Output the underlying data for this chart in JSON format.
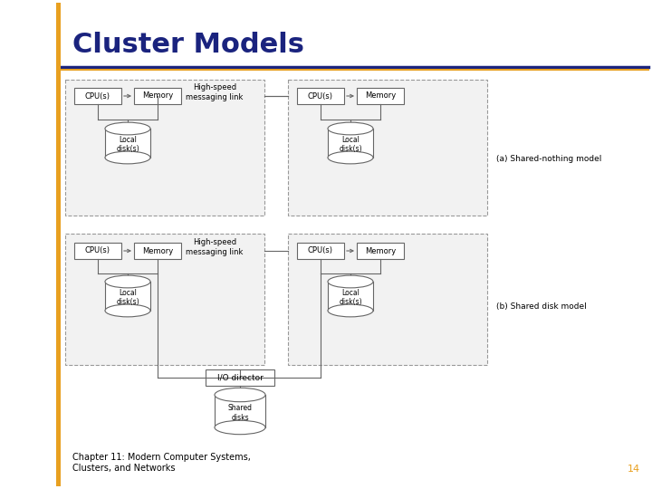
{
  "title": "Cluster Models",
  "subtitle": "Chapter 11: Modern Computer Systems,\nClusters, and Networks",
  "page_num": "14",
  "title_color": "#1a237e",
  "accent_color": "#E8A020",
  "header_line_color_top": "#1a237e",
  "header_line_color_bot": "#E8A020",
  "bg_color": "#ffffff",
  "box_border": "#666666",
  "dashed_border": "#999999",
  "label_a": "(a) Shared-nothing model",
  "label_b": "(b) Shared disk model"
}
